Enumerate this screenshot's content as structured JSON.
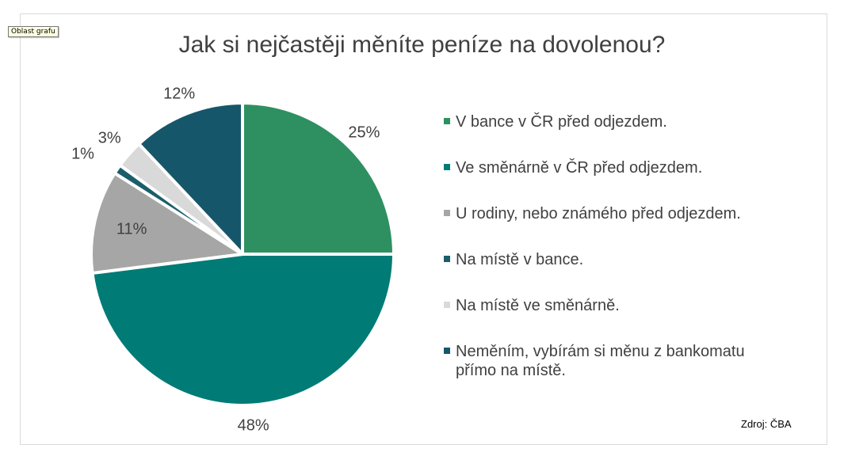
{
  "tooltip": "Oblast grafu",
  "chart_data": {
    "type": "pie",
    "title": "Jak si nejčastěji měníte peníze na dovolenou?",
    "slices": [
      {
        "label": "V bance v ČR před odjezdem.",
        "value": 25,
        "value_label": "25%",
        "color": "#2e9061"
      },
      {
        "label": "Ve směnárně v ČR před odjezdem.",
        "value": 48,
        "value_label": "48%",
        "color": "#007b76"
      },
      {
        "label": "U rodiny, nebo známého před odjezdem.",
        "value": 11,
        "value_label": "11%",
        "color": "#a6a6a6"
      },
      {
        "label": "Na místě v bance.",
        "value": 1,
        "value_label": "1%",
        "color": "#1b5e6b"
      },
      {
        "label": "Na místě ve směnárně.",
        "value": 3,
        "value_label": "3%",
        "color": "#d9d9d9"
      },
      {
        "label": "Neměním, vybírám si měnu z bankomatu přímo na místě.",
        "value": 12,
        "value_label": "12%",
        "color": "#16566a"
      }
    ],
    "legend_position": "right",
    "start_angle": "12 o'clock, clockwise"
  },
  "source": "Zdroj: ČBA"
}
